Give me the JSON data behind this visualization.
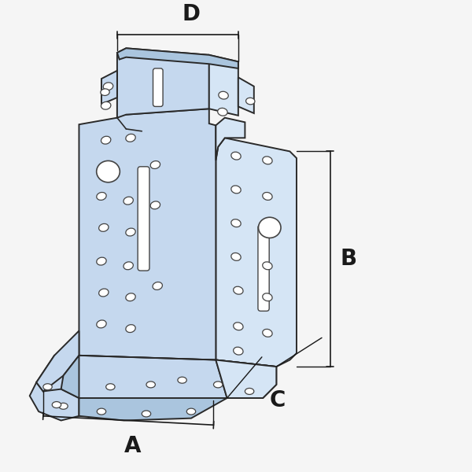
{
  "bg_color": "#f5f5f5",
  "line_color": "#2a2a2a",
  "fill_color": "#c5d8ee",
  "fill_color2": "#d5e5f5",
  "fill_color_dark": "#aac5de",
  "fill_alpha": 1.0,
  "dim_color": "#1a1a1a",
  "label_A": "A",
  "label_B": "B",
  "label_C": "C",
  "label_D": "D",
  "label_fontsize": 20,
  "lw_main": 1.4,
  "lw_dim": 1.2,
  "hole_color": "white",
  "hole_ec": "#444444"
}
